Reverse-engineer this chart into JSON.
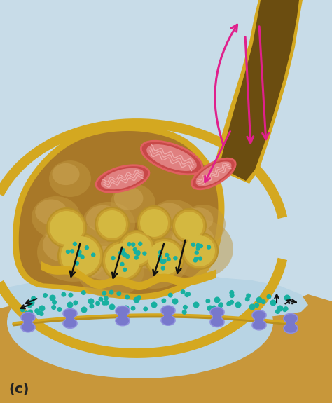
{
  "bg_light_blue": "#c8dce8",
  "bg_bottom_tan": "#c8973a",
  "terminal_border_color": "#d4a820",
  "terminal_fill_color": "#a87828",
  "terminal_interior_color": "#7a5818",
  "axon_border_color": "#d4a820",
  "axon_fill_color": "#a07020",
  "axon_inner_color": "#6b4d10",
  "cleft_color": "#b8d4e4",
  "vesicle_ring_color": "#c8a030",
  "vesicle_fill_color": "#d4b840",
  "plain_vesicle_color": "#c8a85a",
  "blob_color": "#b89040",
  "nt_color": "#18b0a0",
  "mito_outer_color": "#c04040",
  "mito_inner_color": "#e06868",
  "mito_crista_color": "#f0a0a0",
  "arrow_pink": "#e0208c",
  "arrow_black": "#111111",
  "receptor_color": "#7878cc",
  "postmem_color": "#d4a820",
  "label_text": "(c)",
  "label_fontsize": 14
}
